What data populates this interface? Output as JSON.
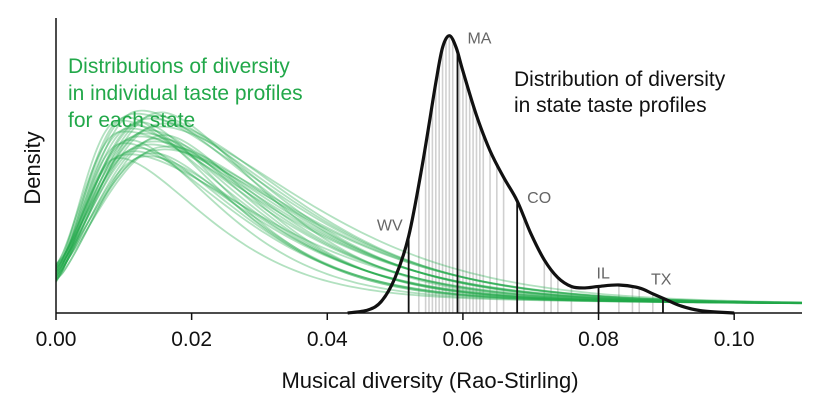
{
  "chart_data": {
    "type": "line",
    "xlabel": "Musical diversity (Rao-Stirling)",
    "ylabel": "Density",
    "xlim": [
      0,
      0.11
    ],
    "ylim": [
      0,
      1
    ],
    "x_ticks": [
      "0.00",
      "0.02",
      "0.04",
      "0.06",
      "0.08",
      "0.10"
    ],
    "y_ticks": [],
    "grid": false,
    "colors": {
      "green": "#22a84a",
      "black": "#111111",
      "gray": "#cccccc"
    },
    "annotations": {
      "green": [
        "Distributions of diversity",
        "in individual taste profiles",
        "for each state"
      ],
      "black": [
        "Distribution of diversity",
        "in state taste profiles"
      ]
    },
    "individual_distributions": {
      "description_count": 30,
      "peak_x_range": [
        0.009,
        0.016
      ],
      "peak_density_range": [
        0.5,
        0.66
      ],
      "color": "#22a84a"
    },
    "state_distribution": {
      "name": "Distribution of diversity in state taste profiles",
      "points": [
        [
          0.043,
          0.0
        ],
        [
          0.046,
          0.01
        ],
        [
          0.048,
          0.04
        ],
        [
          0.05,
          0.12
        ],
        [
          0.052,
          0.26
        ],
        [
          0.054,
          0.5
        ],
        [
          0.056,
          0.78
        ],
        [
          0.057,
          0.9
        ],
        [
          0.058,
          0.94
        ],
        [
          0.059,
          0.9
        ],
        [
          0.06,
          0.82
        ],
        [
          0.062,
          0.67
        ],
        [
          0.064,
          0.55
        ],
        [
          0.066,
          0.46
        ],
        [
          0.068,
          0.38
        ],
        [
          0.07,
          0.27
        ],
        [
          0.072,
          0.18
        ],
        [
          0.074,
          0.12
        ],
        [
          0.076,
          0.09
        ],
        [
          0.078,
          0.085
        ],
        [
          0.08,
          0.09
        ],
        [
          0.083,
          0.095
        ],
        [
          0.086,
          0.085
        ],
        [
          0.088,
          0.065
        ],
        [
          0.09,
          0.045
        ],
        [
          0.092,
          0.025
        ],
        [
          0.095,
          0.008
        ],
        [
          0.1,
          0.0
        ]
      ],
      "color": "#111111"
    },
    "state_lines": [
      0.0535,
      0.0545,
      0.055,
      0.0555,
      0.056,
      0.0565,
      0.057,
      0.0575,
      0.058,
      0.0585,
      0.0595,
      0.06,
      0.0605,
      0.061,
      0.0615,
      0.062,
      0.0625,
      0.063,
      0.064,
      0.065,
      0.066,
      0.069,
      0.072,
      0.073,
      0.074,
      0.076,
      0.083,
      0.085,
      0.086,
      0.088
    ],
    "highlighted_states": [
      {
        "label": "WV",
        "x": 0.052
      },
      {
        "label": "MA",
        "x": 0.0592
      },
      {
        "label": "CO",
        "x": 0.068
      },
      {
        "label": "IL",
        "x": 0.08
      },
      {
        "label": "TX",
        "x": 0.0895
      }
    ]
  }
}
